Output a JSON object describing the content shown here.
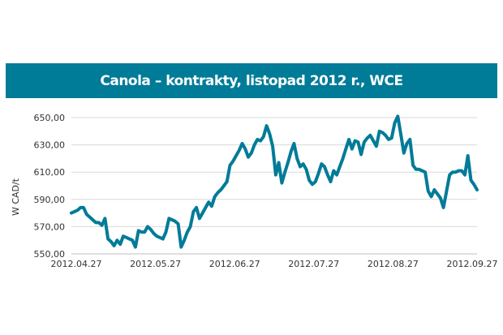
{
  "chart_data": {
    "type": "line",
    "title": "Canola – kontrakty, listopad 2012 r., WCE",
    "ylabel": "W CAD/t",
    "xlabel": "",
    "ylim": [
      550,
      650
    ],
    "yticks": [
      "550,00",
      "570,00",
      "590,00",
      "610,00",
      "630,00",
      "650,00"
    ],
    "xticks": [
      "2012.04.27",
      "2012.05.27",
      "2012.06.27",
      "2012.07.27",
      "2012.08.27",
      "2012.09.27"
    ],
    "grid": "horizontal",
    "line_color": "#007b98",
    "series": [
      {
        "values": [
          580,
          581,
          582,
          584,
          584,
          579,
          577,
          575,
          573,
          573,
          571,
          576,
          561,
          559,
          556,
          560,
          557,
          563,
          562,
          561,
          560,
          555,
          567,
          566,
          566,
          570,
          568,
          565,
          563,
          562,
          561,
          566,
          576,
          575,
          574,
          572,
          555,
          560,
          566,
          570,
          581,
          584,
          576,
          580,
          584,
          588,
          585,
          592,
          595,
          597,
          600,
          603,
          615,
          618,
          622,
          626,
          631,
          627,
          621,
          624,
          630,
          634,
          633,
          636,
          644,
          638,
          629,
          608,
          617,
          602,
          610,
          617,
          625,
          631,
          620,
          614,
          616,
          612,
          604,
          601,
          603,
          609,
          616,
          614,
          608,
          603,
          611,
          608,
          614,
          620,
          627,
          634,
          627,
          633,
          632,
          623,
          632,
          635,
          637,
          633,
          629,
          640,
          639,
          637,
          634,
          635,
          646,
          651,
          638,
          624,
          631,
          634,
          615,
          612,
          612,
          611,
          610,
          596,
          592,
          597,
          594,
          591,
          584,
          596,
          608,
          610,
          610,
          611,
          611,
          608,
          622,
          604,
          601,
          597
        ]
      }
    ]
  }
}
